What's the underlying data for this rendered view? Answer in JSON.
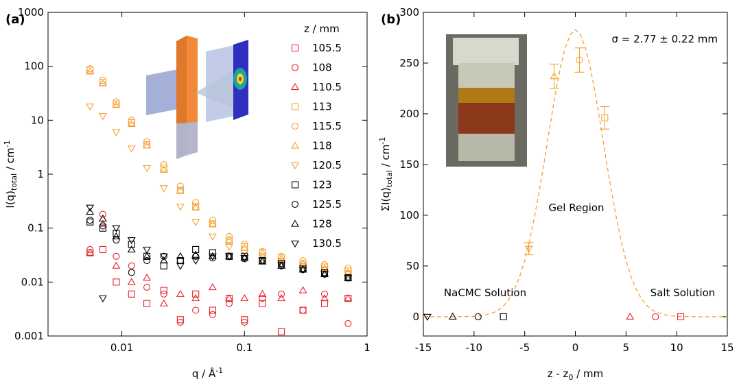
{
  "chart_data": [
    {
      "type": "scatter",
      "panel_label": "(a)",
      "xscale": "log",
      "yscale": "log",
      "xlabel": [
        "q / Å",
        "-1"
      ],
      "ylabel": [
        "I(q)",
        "total",
        " / cm",
        "-1"
      ],
      "xlim": [
        0.0025,
        1
      ],
      "ylim": [
        0.001,
        1000
      ],
      "xticks": [
        0.01,
        0.1,
        1
      ],
      "yticks": [
        0.001,
        0.01,
        0.1,
        1,
        10,
        100,
        1000
      ],
      "legend_title": "z / mm",
      "x": [
        0.0055,
        0.007,
        0.009,
        0.012,
        0.016,
        0.022,
        0.03,
        0.04,
        0.055,
        0.075,
        0.1,
        0.14,
        0.2,
        0.3,
        0.45,
        0.7
      ],
      "series": [
        {
          "name": "105.5",
          "color": "#e8202a",
          "marker": "square",
          "values": [
            0.035,
            0.04,
            0.01,
            0.006,
            0.004,
            0.007,
            0.002,
            0.006,
            0.003,
            0.005,
            0.002,
            0.004,
            0.0012,
            0.003,
            0.004,
            0.005
          ]
        },
        {
          "name": "108",
          "color": "#e8202a",
          "marker": "circle",
          "values": [
            0.04,
            0.18,
            0.03,
            0.02,
            0.008,
            0.006,
            0.0018,
            0.003,
            0.0025,
            0.004,
            0.0018,
            0.005,
            0.006,
            0.003,
            0.006,
            0.0017
          ]
        },
        {
          "name": "110.5",
          "color": "#e8202a",
          "marker": "triangle-up",
          "values": [
            0.035,
            0.12,
            0.02,
            0.01,
            0.012,
            0.004,
            0.006,
            0.005,
            0.008,
            0.005,
            0.005,
            0.006,
            0.005,
            0.007,
            0.005,
            0.005
          ]
        },
        {
          "name": "113",
          "color": "#f5a030",
          "marker": "square",
          "values": [
            85,
            50,
            20,
            9,
            3.5,
            1.3,
            0.5,
            0.25,
            0.12,
            0.06,
            0.045,
            0.035,
            0.028,
            0.022,
            0.019,
            0.016
          ]
        },
        {
          "name": "115.5",
          "color": "#f5a030",
          "marker": "circle",
          "values": [
            90,
            55,
            22,
            10,
            4,
            1.5,
            0.6,
            0.3,
            0.14,
            0.07,
            0.05,
            0.037,
            0.03,
            0.025,
            0.021,
            0.018
          ]
        },
        {
          "name": "118",
          "color": "#f5a030",
          "marker": "triangle-up",
          "values": [
            80,
            48,
            19,
            8.5,
            3.4,
            1.2,
            0.5,
            0.24,
            0.12,
            0.06,
            0.043,
            0.034,
            0.027,
            0.022,
            0.018,
            0.015
          ]
        },
        {
          "name": "120.5",
          "color": "#f5a030",
          "marker": "triangle-down",
          "values": [
            18,
            12,
            6,
            3,
            1.3,
            0.55,
            0.25,
            0.13,
            0.07,
            0.045,
            0.035,
            0.03,
            0.025,
            0.02,
            0.017,
            0.014
          ]
        },
        {
          "name": "123",
          "color": "#000000",
          "marker": "square",
          "values": [
            0.13,
            0.1,
            0.08,
            0.05,
            0.03,
            0.02,
            0.025,
            0.04,
            0.035,
            0.03,
            0.03,
            0.025,
            0.022,
            0.018,
            0.015,
            0.012
          ]
        },
        {
          "name": "125.5",
          "color": "#000000",
          "marker": "circle",
          "values": [
            0.14,
            0.11,
            0.06,
            0.015,
            0.025,
            0.03,
            0.025,
            0.03,
            0.028,
            0.03,
            0.027,
            0.025,
            0.02,
            0.017,
            0.014,
            0.012
          ]
        },
        {
          "name": "128",
          "color": "#000000",
          "marker": "triangle-up",
          "values": [
            0.2,
            0.15,
            0.07,
            0.04,
            0.03,
            0.025,
            0.03,
            0.032,
            0.03,
            0.03,
            0.028,
            0.024,
            0.02,
            0.017,
            0.014,
            0.012
          ]
        },
        {
          "name": "130.5",
          "color": "#000000",
          "marker": "triangle-down",
          "values": [
            0.24,
            0.005,
            0.1,
            0.06,
            0.04,
            0.03,
            0.02,
            0.025,
            0.03,
            0.03,
            0.028,
            0.025,
            0.021,
            0.017,
            0.014,
            0.012
          ]
        }
      ]
    },
    {
      "type": "scatter",
      "panel_label": "(b)",
      "xscale": "linear",
      "yscale": "linear",
      "xlabel": [
        "z - z",
        "0",
        " / mm"
      ],
      "ylabel": [
        "ΣI(q)",
        "total",
        " / cm",
        "-1"
      ],
      "xlim": [
        -15,
        15
      ],
      "ylim": [
        -19,
        300
      ],
      "xticks": [
        -15,
        -10,
        -5,
        0,
        5,
        10,
        15
      ],
      "yticks": [
        0,
        50,
        100,
        150,
        200,
        250,
        300
      ],
      "points": {
        "x": [
          -14.6,
          -12.1,
          -9.6,
          -7.1,
          -4.6,
          -2.1,
          0.4,
          2.9,
          5.4,
          7.9,
          10.4
        ],
        "values": [
          0,
          0,
          0,
          0,
          67,
          237,
          253,
          196,
          0,
          0,
          0
        ],
        "errors": [
          null,
          null,
          null,
          null,
          6,
          12,
          12,
          11,
          null,
          null,
          null
        ],
        "markers": [
          "triangle-down",
          "triangle-up",
          "circle",
          "square",
          "triangle-down",
          "triangle-up",
          "circle",
          "square",
          "triangle-up",
          "circle",
          "square"
        ],
        "colors": [
          "#000000",
          "#000000",
          "#000000",
          "#000000",
          "#f5a030",
          "#f5a030",
          "#f5a030",
          "#f5a030",
          "#e8202a",
          "#e8202a",
          "#e8202a"
        ]
      },
      "curve": {
        "color": "#f5a030",
        "dashed": true,
        "x": [
          -15,
          -12,
          -10,
          -9,
          -8,
          -7.5,
          -7,
          -6.5,
          -6,
          -5.5,
          -5,
          -4.5,
          -4,
          -3.5,
          -3,
          -2.5,
          -2,
          -1.5,
          -1,
          -0.5,
          0,
          0.5,
          1,
          1.5,
          2,
          2.5,
          3,
          3.5,
          4,
          4.5,
          5,
          5.5,
          6,
          6.5,
          7,
          7.5,
          8,
          9,
          10,
          12,
          15
        ],
        "values": [
          0,
          0,
          0.4,
          1.4,
          4.4,
          7.2,
          11.6,
          18,
          27.1,
          39.4,
          55.5,
          75.7,
          100,
          127.4,
          157,
          188.4,
          218,
          244.5,
          265,
          278,
          283,
          278,
          265,
          244.5,
          218,
          188.4,
          157,
          127.4,
          100,
          75.7,
          55.5,
          39.4,
          27.1,
          18,
          11.6,
          7.2,
          4.4,
          1.4,
          0.4,
          0,
          0
        ]
      },
      "annotations": [
        {
          "text": "σ = 2.77 ± 0.22 mm",
          "color": "#000000"
        },
        {
          "text": "Gel Region",
          "color": "#f5a030"
        },
        {
          "text": "NaCMC Solution",
          "color": "#000000"
        },
        {
          "text": "Salt Solution",
          "color": "#e8202a"
        }
      ]
    }
  ]
}
